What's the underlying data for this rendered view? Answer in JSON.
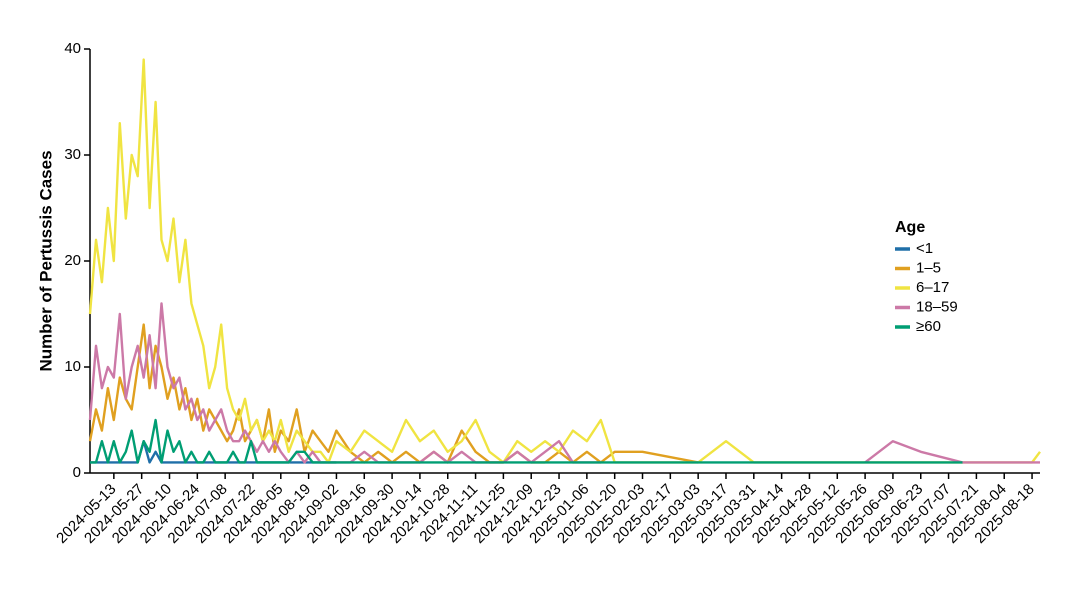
{
  "chart_data": {
    "type": "line",
    "y_label": "Number of Pertussis Cases",
    "legend_title": "Age",
    "legend": "right",
    "xlim": [
      "2024-05-01",
      "2025-08-22"
    ],
    "xticks": [
      "2024-05-13",
      "2024-05-27",
      "2024-06-10",
      "2024-06-24",
      "2024-07-08",
      "2024-07-22",
      "2024-08-05",
      "2024-08-19",
      "2024-09-02",
      "2024-09-16",
      "2024-09-30",
      "2024-10-14",
      "2024-10-28",
      "2024-11-11",
      "2024-11-25",
      "2024-12-09",
      "2024-12-23",
      "2025-01-06",
      "2025-01-20",
      "2025-02-03",
      "2025-02-17",
      "2025-03-03",
      "2025-03-17",
      "2025-03-31",
      "2025-04-14",
      "2025-04-28",
      "2025-05-12",
      "2025-05-26",
      "2025-06-09",
      "2025-06-23",
      "2025-07-07",
      "2025-07-21",
      "2025-08-04",
      "2025-08-18"
    ],
    "ylim": [
      0,
      40
    ],
    "yticks": [
      0,
      10,
      20,
      30,
      40
    ],
    "x": [
      "2024-05-01",
      "2024-05-04",
      "2024-05-07",
      "2024-05-10",
      "2024-05-13",
      "2024-05-16",
      "2024-05-19",
      "2024-05-22",
      "2024-05-25",
      "2024-05-28",
      "2024-05-31",
      "2024-06-03",
      "2024-06-06",
      "2024-06-09",
      "2024-06-12",
      "2024-06-15",
      "2024-06-18",
      "2024-06-21",
      "2024-06-24",
      "2024-06-27",
      "2024-06-30",
      "2024-07-03",
      "2024-07-06",
      "2024-07-09",
      "2024-07-12",
      "2024-07-15",
      "2024-07-18",
      "2024-07-21",
      "2024-07-24",
      "2024-07-27",
      "2024-07-30",
      "2024-08-02",
      "2024-08-05",
      "2024-08-09",
      "2024-08-13",
      "2024-08-17",
      "2024-08-21",
      "2024-08-25",
      "2024-08-29",
      "2024-09-02",
      "2024-09-09",
      "2024-09-16",
      "2024-09-23",
      "2024-09-30",
      "2024-10-07",
      "2024-10-14",
      "2024-10-21",
      "2024-10-28",
      "2024-11-04",
      "2024-11-11",
      "2024-11-18",
      "2024-11-25",
      "2024-12-02",
      "2024-12-09",
      "2024-12-16",
      "2024-12-23",
      "2024-12-30",
      "2025-01-06",
      "2025-01-13",
      "2025-01-20",
      "2025-02-03",
      "2025-03-03",
      "2025-03-17",
      "2025-03-31",
      "2025-05-12",
      "2025-05-26",
      "2025-06-09",
      "2025-06-23",
      "2025-07-14",
      "2025-08-18",
      "2025-08-22"
    ],
    "series": [
      {
        "name": "<1",
        "color": "#1f6fa8",
        "values": [
          1,
          1,
          1,
          1,
          1,
          1,
          1,
          1,
          1,
          3,
          1,
          2,
          1,
          1,
          1,
          1,
          1,
          1,
          1,
          1,
          1,
          1,
          1,
          1,
          1,
          1,
          1,
          1,
          1,
          1,
          1,
          1,
          1,
          1,
          1,
          1,
          1,
          1,
          1,
          1,
          null,
          null,
          null,
          null,
          null,
          null,
          null,
          null,
          null,
          null,
          null,
          null,
          null,
          null,
          null,
          null,
          null,
          null,
          null,
          null,
          null,
          null,
          null,
          null,
          null,
          null,
          null,
          null,
          null,
          null,
          null
        ]
      },
      {
        "name": "1–5",
        "color": "#e0a020",
        "values": [
          3,
          6,
          4,
          8,
          5,
          9,
          7,
          6,
          10,
          14,
          8,
          12,
          10,
          7,
          9,
          6,
          8,
          5,
          7,
          4,
          6,
          5,
          4,
          3,
          4,
          6,
          3,
          4,
          5,
          3,
          6,
          2,
          4,
          3,
          6,
          2,
          4,
          3,
          2,
          4,
          2,
          1,
          2,
          1,
          2,
          1,
          2,
          1,
          4,
          2,
          1,
          1,
          2,
          1,
          1,
          2,
          1,
          2,
          1,
          2,
          2,
          1,
          null,
          null,
          null,
          null,
          null,
          null,
          null,
          null,
          null
        ]
      },
      {
        "name": "6–17",
        "color": "#f0e442",
        "values": [
          15,
          22,
          18,
          25,
          20,
          33,
          24,
          30,
          28,
          39,
          25,
          35,
          22,
          20,
          24,
          18,
          22,
          16,
          14,
          12,
          8,
          10,
          14,
          8,
          6,
          5,
          7,
          4,
          5,
          3,
          4,
          3,
          5,
          2,
          4,
          3,
          2,
          2,
          1,
          3,
          2,
          4,
          3,
          2,
          5,
          3,
          4,
          2,
          3,
          5,
          2,
          1,
          3,
          2,
          3,
          2,
          4,
          3,
          5,
          1,
          1,
          1,
          3,
          1,
          1,
          1,
          1,
          1,
          1,
          1,
          2
        ]
      },
      {
        "name": "18–59",
        "color": "#cc79a7",
        "values": [
          5,
          12,
          8,
          10,
          9,
          15,
          7,
          10,
          12,
          9,
          13,
          8,
          16,
          10,
          8,
          9,
          6,
          7,
          5,
          6,
          4,
          5,
          6,
          4,
          3,
          3,
          4,
          3,
          2,
          3,
          2,
          3,
          2,
          1,
          2,
          1,
          2,
          1,
          1,
          1,
          1,
          2,
          1,
          1,
          1,
          1,
          2,
          1,
          2,
          1,
          1,
          1,
          2,
          1,
          2,
          3,
          1,
          1,
          1,
          null,
          null,
          null,
          null,
          null,
          null,
          1,
          3,
          2,
          1,
          1,
          1
        ]
      },
      {
        "name": "≥60",
        "color": "#009e73",
        "values": [
          1,
          1,
          3,
          1,
          3,
          1,
          2,
          4,
          1,
          3,
          2,
          5,
          1,
          4,
          2,
          3,
          1,
          2,
          1,
          1,
          2,
          1,
          1,
          1,
          2,
          1,
          1,
          3,
          1,
          1,
          1,
          1,
          1,
          1,
          2,
          2,
          1,
          1,
          1,
          1,
          1,
          1,
          1,
          1,
          1,
          1,
          1,
          1,
          1,
          1,
          1,
          1,
          1,
          1,
          1,
          1,
          1,
          1,
          1,
          1,
          1,
          1,
          1,
          1,
          1,
          1,
          1,
          1,
          1,
          null,
          null
        ]
      }
    ]
  }
}
